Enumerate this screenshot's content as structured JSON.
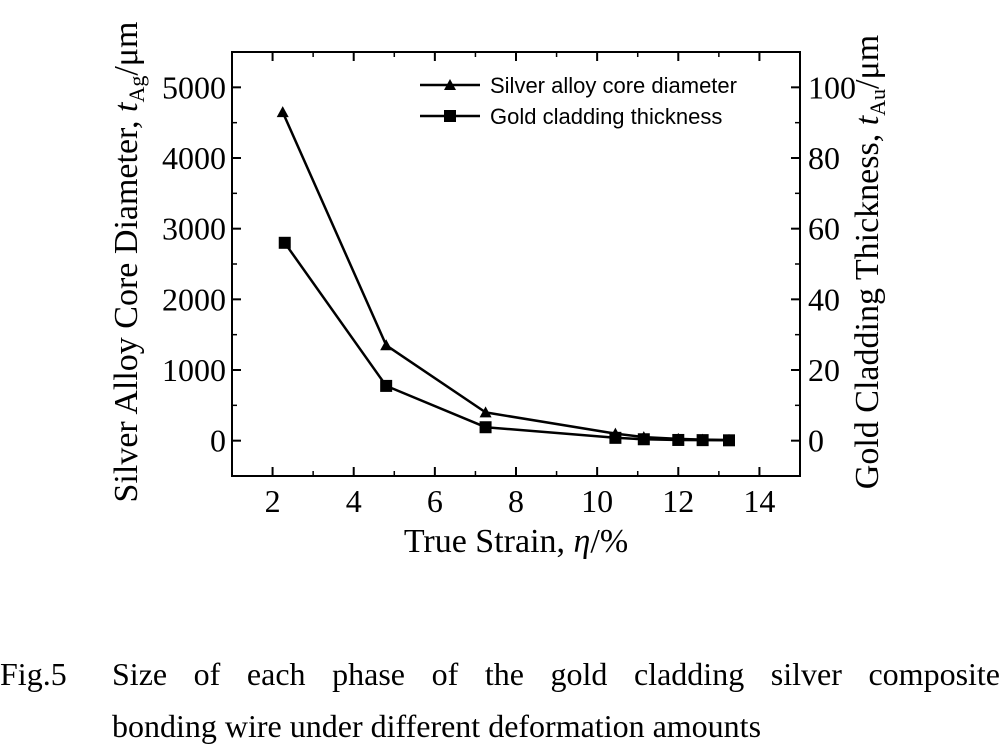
{
  "chart_data": {
    "type": "line",
    "xlabel": "True Strain, η/%",
    "ylabel_left": {
      "main": "Silver Alloy Core Diameter, ",
      "var": "t",
      "sub": "Ag",
      "unit": "/μm"
    },
    "ylabel_right": {
      "main": "Gold Cladding Thickness, ",
      "var": "t",
      "sub": "Au",
      "unit": "/μm"
    },
    "xlim": [
      1,
      15
    ],
    "ylim_left": [
      -500,
      5500
    ],
    "ylim_right": [
      -10,
      110
    ],
    "x_ticks": [
      "2",
      "4",
      "6",
      "8",
      "10",
      "12",
      "14"
    ],
    "y_left_ticks": [
      "0",
      "1000",
      "2000",
      "3000",
      "4000",
      "5000"
    ],
    "y_right_ticks": [
      "0",
      "20",
      "40",
      "60",
      "80",
      "100"
    ],
    "grid": false,
    "legend_position": "top-right",
    "series": [
      {
        "name": "Silver alloy core diameter",
        "axis": "left",
        "marker": "triangle",
        "x": [
          2.25,
          4.8,
          7.25,
          10.45,
          11.15,
          12.0,
          12.6,
          13.25
        ],
        "values": [
          4650,
          1350,
          400,
          100,
          50,
          25,
          15,
          10
        ]
      },
      {
        "name": "Gold cladding thickness",
        "axis": "right",
        "marker": "square",
        "x": [
          2.3,
          4.8,
          7.25,
          10.45,
          11.15,
          12.0,
          12.6,
          13.25
        ],
        "values": [
          56,
          15.5,
          3.8,
          0.8,
          0.4,
          0.2,
          0.15,
          0.1
        ]
      }
    ]
  },
  "caption": {
    "label": "Fig.5",
    "line1": "Size of each phase of the gold cladding silver composite",
    "line2": "bonding wire under different deformation amounts"
  }
}
